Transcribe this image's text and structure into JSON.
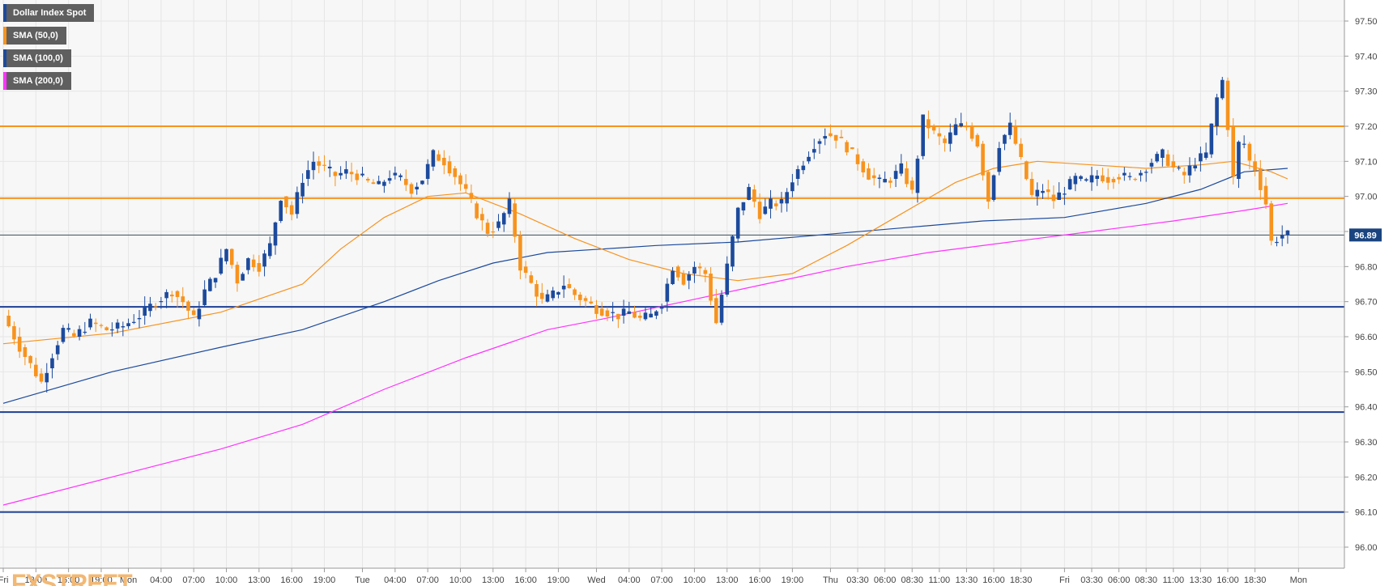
{
  "chart_data": {
    "type": "candlestick",
    "instrument": "Dollar Index Spot",
    "ylim": [
      95.94,
      97.56
    ],
    "y_ticks": [
      "97.50",
      "97.40",
      "97.30",
      "97.20",
      "97.10",
      "97.00",
      "96.90",
      "96.80",
      "96.70",
      "96.60",
      "96.50",
      "96.40",
      "96.30",
      "96.20",
      "96.10",
      "96.00"
    ],
    "x_ticks": [
      {
        "label": "Fri",
        "i": 0
      },
      {
        "label": "13:00",
        "i": 6
      },
      {
        "label": "16:00",
        "i": 12
      },
      {
        "label": "19:00",
        "i": 18
      },
      {
        "label": "Mon",
        "i": 23
      },
      {
        "label": "04:00",
        "i": 29
      },
      {
        "label": "07:00",
        "i": 35
      },
      {
        "label": "10:00",
        "i": 41
      },
      {
        "label": "13:00",
        "i": 47
      },
      {
        "label": "16:00",
        "i": 53
      },
      {
        "label": "19:00",
        "i": 59
      },
      {
        "label": "Tue",
        "i": 66
      },
      {
        "label": "04:00",
        "i": 72
      },
      {
        "label": "07:00",
        "i": 78
      },
      {
        "label": "10:00",
        "i": 84
      },
      {
        "label": "13:00",
        "i": 90
      },
      {
        "label": "16:00",
        "i": 96
      },
      {
        "label": "19:00",
        "i": 102
      },
      {
        "label": "Wed",
        "i": 109
      },
      {
        "label": "04:00",
        "i": 115
      },
      {
        "label": "07:00",
        "i": 121
      },
      {
        "label": "10:00",
        "i": 127
      },
      {
        "label": "13:00",
        "i": 133
      },
      {
        "label": "16:00",
        "i": 139
      },
      {
        "label": "19:00",
        "i": 145
      },
      {
        "label": "Thu",
        "i": 152
      },
      {
        "label": "03:30",
        "i": 157
      },
      {
        "label": "06:00",
        "i": 162
      },
      {
        "label": "08:30",
        "i": 167
      },
      {
        "label": "11:00",
        "i": 172
      },
      {
        "label": "13:30",
        "i": 177
      },
      {
        "label": "16:00",
        "i": 182
      },
      {
        "label": "18:30",
        "i": 187
      },
      {
        "label": "Fri",
        "i": 195
      },
      {
        "label": "03:30",
        "i": 200
      },
      {
        "label": "06:00",
        "i": 205
      },
      {
        "label": "08:30",
        "i": 210
      },
      {
        "label": "11:00",
        "i": 215
      },
      {
        "label": "13:30",
        "i": 220
      },
      {
        "label": "16:00",
        "i": 225
      },
      {
        "label": "18:30",
        "i": 230
      },
      {
        "label": "Mon",
        "i": 238
      }
    ],
    "horizontal_levels": [
      {
        "name": "resistance-1",
        "value": 97.2,
        "color": "#f7931e"
      },
      {
        "name": "resistance-2",
        "value": 96.995,
        "color": "#f7931e"
      },
      {
        "name": "support-1",
        "value": 96.685,
        "color": "#1c3f94"
      },
      {
        "name": "support-2",
        "value": 96.385,
        "color": "#1c3f94"
      },
      {
        "name": "support-3",
        "value": 96.1,
        "color": "#1c3f94"
      }
    ],
    "last_price": {
      "value": 96.89,
      "label": "96.89",
      "color": "#1a4480"
    },
    "legend": [
      {
        "label": "Dollar Index Spot",
        "color": "#1c4a9c"
      },
      {
        "label": "SMA (50,0)",
        "color": "#f7931e"
      },
      {
        "label": "SMA (100,0)",
        "color": "#1c4a9c"
      },
      {
        "label": "SMA (200,0)",
        "color": "#ff33ff"
      }
    ],
    "colors": {
      "up": "#1c4a9c",
      "down": "#f7931e",
      "sma50": "#f7931e",
      "sma100": "#1c4a9c",
      "sma200": "#ff33ff",
      "grid": "#e6e6e6",
      "plot_bg": "#f7f7f7"
    },
    "watermark": "FXSTREET",
    "key_closes": [
      [
        0,
        96.66
      ],
      [
        3,
        96.57
      ],
      [
        5,
        96.52
      ],
      [
        7,
        96.47
      ],
      [
        9,
        96.55
      ],
      [
        11,
        96.62
      ],
      [
        13,
        96.6
      ],
      [
        16,
        96.64
      ],
      [
        19,
        96.62
      ],
      [
        22,
        96.63
      ],
      [
        25,
        96.66
      ],
      [
        28,
        96.7
      ],
      [
        31,
        96.73
      ],
      [
        33,
        96.7
      ],
      [
        35,
        96.65
      ],
      [
        37,
        96.73
      ],
      [
        39,
        96.78
      ],
      [
        41,
        96.85
      ],
      [
        43,
        96.76
      ],
      [
        45,
        96.82
      ],
      [
        47,
        96.8
      ],
      [
        49,
        96.86
      ],
      [
        51,
        97.0
      ],
      [
        53,
        96.95
      ],
      [
        55,
        97.05
      ],
      [
        57,
        97.1
      ],
      [
        59,
        97.08
      ],
      [
        61,
        97.06
      ],
      [
        63,
        97.07
      ],
      [
        65,
        97.06
      ],
      [
        67,
        97.04
      ],
      [
        69,
        97.03
      ],
      [
        71,
        97.06
      ],
      [
        73,
        97.05
      ],
      [
        75,
        97.02
      ],
      [
        77,
        97.05
      ],
      [
        79,
        97.12
      ],
      [
        81,
        97.1
      ],
      [
        83,
        97.06
      ],
      [
        85,
        97.01
      ],
      [
        87,
        96.95
      ],
      [
        89,
        96.9
      ],
      [
        91,
        96.92
      ],
      [
        93,
        96.98
      ],
      [
        95,
        96.8
      ],
      [
        97,
        96.75
      ],
      [
        99,
        96.7
      ],
      [
        101,
        96.72
      ],
      [
        103,
        96.75
      ],
      [
        105,
        96.72
      ],
      [
        107,
        96.7
      ],
      [
        109,
        96.68
      ],
      [
        111,
        96.67
      ],
      [
        113,
        96.66
      ],
      [
        115,
        96.67
      ],
      [
        117,
        96.65
      ],
      [
        119,
        96.66
      ],
      [
        121,
        96.7
      ],
      [
        123,
        96.8
      ],
      [
        125,
        96.76
      ],
      [
        127,
        96.8
      ],
      [
        129,
        96.78
      ],
      [
        131,
        96.64
      ],
      [
        133,
        96.8
      ],
      [
        135,
        96.96
      ],
      [
        137,
        97.02
      ],
      [
        139,
        96.95
      ],
      [
        141,
        96.98
      ],
      [
        143,
        96.98
      ],
      [
        145,
        97.05
      ],
      [
        147,
        97.1
      ],
      [
        149,
        97.15
      ],
      [
        151,
        97.18
      ],
      [
        153,
        97.17
      ],
      [
        155,
        97.14
      ],
      [
        157,
        97.1
      ],
      [
        159,
        97.06
      ],
      [
        161,
        97.04
      ],
      [
        163,
        97.05
      ],
      [
        165,
        97.08
      ],
      [
        167,
        97.01
      ],
      [
        169,
        97.22
      ],
      [
        171,
        97.18
      ],
      [
        173,
        97.15
      ],
      [
        175,
        97.2
      ],
      [
        177,
        97.2
      ],
      [
        179,
        97.15
      ],
      [
        181,
        96.99
      ],
      [
        183,
        97.15
      ],
      [
        185,
        97.2
      ],
      [
        187,
        97.1
      ],
      [
        189,
        97.0
      ],
      [
        191,
        97.02
      ],
      [
        193,
        96.99
      ],
      [
        195,
        97.02
      ],
      [
        197,
        97.05
      ],
      [
        199,
        97.04
      ],
      [
        201,
        97.06
      ],
      [
        203,
        97.05
      ],
      [
        205,
        97.06
      ],
      [
        207,
        97.05
      ],
      [
        209,
        97.07
      ],
      [
        211,
        97.1
      ],
      [
        213,
        97.12
      ],
      [
        215,
        97.08
      ],
      [
        217,
        97.06
      ],
      [
        219,
        97.1
      ],
      [
        221,
        97.12
      ],
      [
        223,
        97.28
      ],
      [
        224,
        97.33
      ],
      [
        225,
        97.2
      ],
      [
        226,
        97.05
      ],
      [
        227,
        97.15
      ],
      [
        228,
        97.15
      ],
      [
        229,
        97.1
      ],
      [
        230,
        97.08
      ],
      [
        231,
        97.03
      ],
      [
        232,
        96.98
      ],
      [
        233,
        96.87
      ],
      [
        234,
        96.88
      ],
      [
        235,
        96.89
      ],
      [
        236,
        96.89
      ]
    ],
    "sma50": [
      [
        0,
        96.58
      ],
      [
        20,
        96.61
      ],
      [
        40,
        96.67
      ],
      [
        55,
        96.75
      ],
      [
        62,
        96.85
      ],
      [
        70,
        96.94
      ],
      [
        78,
        97.0
      ],
      [
        85,
        97.01
      ],
      [
        95,
        96.95
      ],
      [
        105,
        96.88
      ],
      [
        115,
        96.82
      ],
      [
        125,
        96.78
      ],
      [
        135,
        96.76
      ],
      [
        145,
        96.78
      ],
      [
        155,
        96.86
      ],
      [
        165,
        96.95
      ],
      [
        175,
        97.04
      ],
      [
        182,
        97.08
      ],
      [
        190,
        97.1
      ],
      [
        200,
        97.09
      ],
      [
        210,
        97.08
      ],
      [
        220,
        97.09
      ],
      [
        226,
        97.1
      ],
      [
        233,
        97.07
      ],
      [
        236,
        97.05
      ]
    ],
    "sma100": [
      [
        0,
        96.41
      ],
      [
        20,
        96.5
      ],
      [
        40,
        96.57
      ],
      [
        55,
        96.62
      ],
      [
        70,
        96.7
      ],
      [
        80,
        96.76
      ],
      [
        90,
        96.81
      ],
      [
        100,
        96.84
      ],
      [
        110,
        96.85
      ],
      [
        120,
        96.86
      ],
      [
        135,
        96.87
      ],
      [
        150,
        96.89
      ],
      [
        165,
        96.91
      ],
      [
        180,
        96.93
      ],
      [
        195,
        96.94
      ],
      [
        210,
        96.98
      ],
      [
        220,
        97.02
      ],
      [
        228,
        97.07
      ],
      [
        236,
        97.08
      ]
    ],
    "sma200": [
      [
        0,
        96.12
      ],
      [
        20,
        96.2
      ],
      [
        40,
        96.28
      ],
      [
        55,
        96.35
      ],
      [
        70,
        96.45
      ],
      [
        85,
        96.54
      ],
      [
        100,
        96.62
      ],
      [
        110,
        96.65
      ],
      [
        125,
        96.7
      ],
      [
        140,
        96.75
      ],
      [
        155,
        96.8
      ],
      [
        170,
        96.84
      ],
      [
        185,
        96.87
      ],
      [
        200,
        96.9
      ],
      [
        215,
        96.93
      ],
      [
        228,
        96.96
      ],
      [
        236,
        96.98
      ]
    ]
  }
}
